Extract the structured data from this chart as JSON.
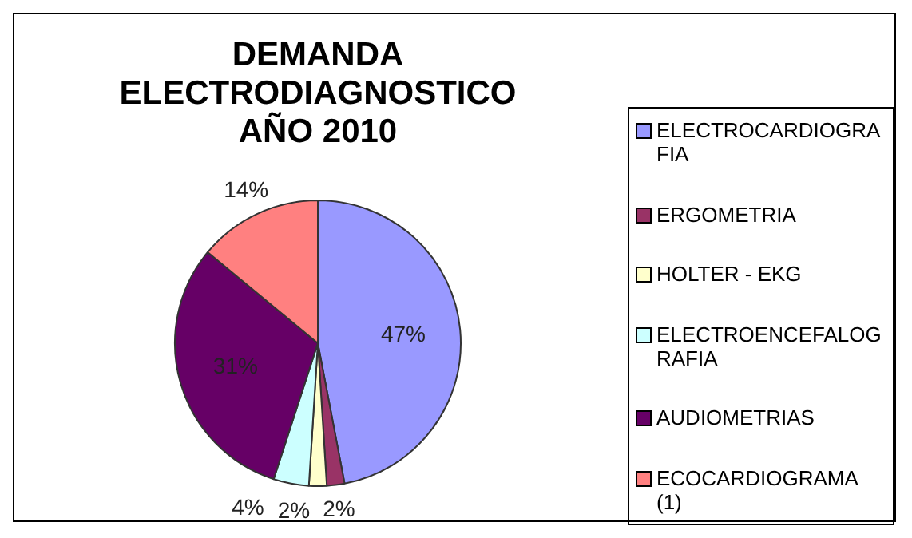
{
  "chart_data": {
    "type": "pie",
    "title": "DEMANDA ELECTRODIAGNOSTICO AÑO 2010",
    "categories": [
      "ELECTROCARDIOGRAFIA",
      "ERGOMETRIA",
      "HOLTER - EKG",
      "ELECTROENCEFALOGRAFIA",
      "AUDIOMETRIAS",
      "ECOCARDIOGRAMA (1)"
    ],
    "values": [
      47,
      2,
      2,
      4,
      31,
      14
    ],
    "value_labels": [
      "47%",
      "2%",
      "2%",
      "4%",
      "31%",
      "14%"
    ],
    "colors": [
      "#9999ff",
      "#993366",
      "#ffffcc",
      "#ccffff",
      "#660066",
      "#ff8080"
    ],
    "legend": "right"
  }
}
